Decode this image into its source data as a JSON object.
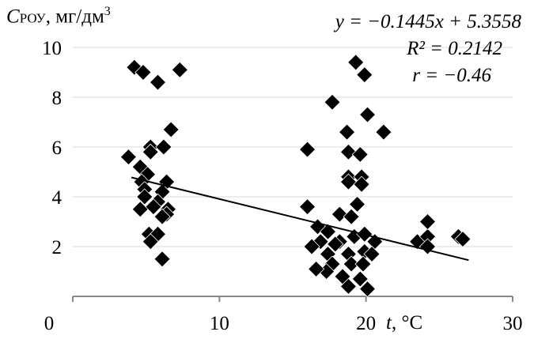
{
  "chart_data": {
    "type": "scatter",
    "title": "",
    "ylabel": {
      "symbol": "C",
      "subscript": "РОУ",
      "units": ", мг/дм",
      "sup": "3"
    },
    "xlabel": {
      "symbol": "t",
      "units": ", °C"
    },
    "xlim": [
      0,
      30
    ],
    "ylim": [
      0,
      10
    ],
    "xticks": [
      0,
      10,
      20,
      30
    ],
    "yticks": [
      2,
      4,
      6,
      8,
      10
    ],
    "grid": "horizontal",
    "marker_color": "#000000",
    "annotations": {
      "equation": "y = −0.1445x + 5.3558",
      "r2": "R² = 0.2142",
      "r": "r = −0.46"
    },
    "trendline": {
      "slope": -0.1445,
      "intercept": 5.3558,
      "x_range": [
        4,
        27
      ]
    },
    "points": [
      [
        4.2,
        9.2
      ],
      [
        4.8,
        9.0
      ],
      [
        5.8,
        8.6
      ],
      [
        7.3,
        9.1
      ],
      [
        6.7,
        6.7
      ],
      [
        3.8,
        5.6
      ],
      [
        5.3,
        6.0
      ],
      [
        5.3,
        5.8
      ],
      [
        6.2,
        6.0
      ],
      [
        4.6,
        5.2
      ],
      [
        5.1,
        4.9
      ],
      [
        4.7,
        4.6
      ],
      [
        6.4,
        4.6
      ],
      [
        4.9,
        4.3
      ],
      [
        6.1,
        4.2
      ],
      [
        4.9,
        4.0
      ],
      [
        5.8,
        3.8
      ],
      [
        4.6,
        3.5
      ],
      [
        5.5,
        3.6
      ],
      [
        6.5,
        3.5
      ],
      [
        6.4,
        3.3
      ],
      [
        6.1,
        3.2
      ],
      [
        5.2,
        2.5
      ],
      [
        5.8,
        2.5
      ],
      [
        5.3,
        2.2
      ],
      [
        6.1,
        1.5
      ],
      [
        16.0,
        5.9
      ],
      [
        16.0,
        3.6
      ],
      [
        19.3,
        9.4
      ],
      [
        19.9,
        8.9
      ],
      [
        17.7,
        7.8
      ],
      [
        20.1,
        7.3
      ],
      [
        18.7,
        6.6
      ],
      [
        21.2,
        6.6
      ],
      [
        18.8,
        5.8
      ],
      [
        19.6,
        5.7
      ],
      [
        18.8,
        4.8
      ],
      [
        19.7,
        4.8
      ],
      [
        18.8,
        4.6
      ],
      [
        19.7,
        4.5
      ],
      [
        19.4,
        3.7
      ],
      [
        18.2,
        3.3
      ],
      [
        19.0,
        3.2
      ],
      [
        16.7,
        2.8
      ],
      [
        17.4,
        2.6
      ],
      [
        16.9,
        2.2
      ],
      [
        18.2,
        2.2
      ],
      [
        19.2,
        2.4
      ],
      [
        19.9,
        2.5
      ],
      [
        20.6,
        2.2
      ],
      [
        16.3,
        2.0
      ],
      [
        17.4,
        1.7
      ],
      [
        18.8,
        1.7
      ],
      [
        19.9,
        1.8
      ],
      [
        20.4,
        1.7
      ],
      [
        17.7,
        1.3
      ],
      [
        19.0,
        1.3
      ],
      [
        19.8,
        1.3
      ],
      [
        17.3,
        1.0
      ],
      [
        18.4,
        0.8
      ],
      [
        19.6,
        0.7
      ],
      [
        18.8,
        0.4
      ],
      [
        20.1,
        0.3
      ],
      [
        16.6,
        1.1
      ],
      [
        17.9,
        2.1
      ],
      [
        23.5,
        2.2
      ],
      [
        24.2,
        2.4
      ],
      [
        24.2,
        3.0
      ],
      [
        24.2,
        2.0
      ],
      [
        26.3,
        2.4
      ],
      [
        26.6,
        2.3
      ]
    ]
  }
}
